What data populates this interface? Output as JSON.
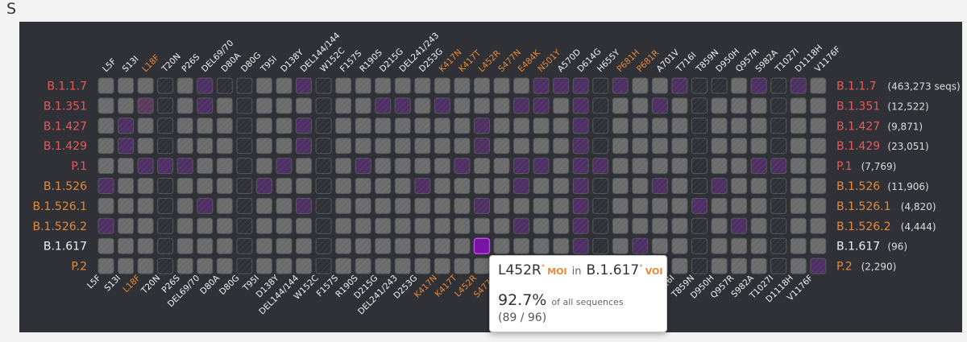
{
  "section": {
    "title": "S"
  },
  "colors": {
    "voc": "#e8595c",
    "voi": "#e5893a",
    "label_default": "#f2f2f2",
    "cell_present": "#6b6b6b",
    "cell_absent": "#2e3035",
    "cell_partial": "#4d2f63",
    "cell_full": "#7a12a3",
    "count_text": "#dddddd"
  },
  "chart_data": {
    "type": "heatmap",
    "mutations": [
      "L5F",
      "S13I",
      "L18F",
      "T20N",
      "P26S",
      "DEL69/70",
      "D80A",
      "D80G",
      "T95I",
      "D138Y",
      "DEL144/144",
      "W152C",
      "F157S",
      "R190S",
      "D215G",
      "DEL241/243",
      "D253G",
      "K417N",
      "K417T",
      "L452R",
      "S477N",
      "E484K",
      "N501Y",
      "A570D",
      "D614G",
      "H655Y",
      "P681H",
      "P681R",
      "A701V",
      "T716I",
      "T859N",
      "D950H",
      "Q957R",
      "S982A",
      "T1027I",
      "D1118H",
      "V1176F"
    ],
    "mutation_highlight": [
      0,
      0,
      1,
      0,
      0,
      0,
      0,
      0,
      0,
      0,
      0,
      0,
      0,
      0,
      0,
      0,
      0,
      1,
      1,
      1,
      1,
      1,
      1,
      0,
      0,
      0,
      1,
      1,
      0,
      0,
      0,
      0,
      0,
      0,
      0,
      0,
      0
    ],
    "lineages": [
      {
        "name": "B.1.1.7",
        "count": "(463,273 seqs)",
        "type": "voc"
      },
      {
        "name": "B.1.351",
        "count": "(12,522)",
        "type": "voc"
      },
      {
        "name": "B.1.427",
        "count": "(9,871)",
        "type": "voc"
      },
      {
        "name": "B.1.429",
        "count": "(23,051)",
        "type": "voc"
      },
      {
        "name": "P.1",
        "count": "(7,769)",
        "type": "voc"
      },
      {
        "name": "B.1.526",
        "count": "(11,906)",
        "type": "voi"
      },
      {
        "name": "B.1.526.1",
        "count": "(4,820)",
        "type": "voi"
      },
      {
        "name": "B.1.526.2",
        "count": "(4,444)",
        "type": "voi"
      },
      {
        "name": "B.1.617",
        "count": "(96)",
        "type": "default"
      },
      {
        "name": "P.2",
        "count": "(2,290)",
        "type": "voi"
      }
    ],
    "matrix": [
      [
        1,
        1,
        1,
        0,
        1,
        2,
        0,
        0,
        1,
        1,
        2,
        0,
        1,
        1,
        1,
        1,
        1,
        1,
        1,
        1,
        1,
        1,
        2,
        2,
        2,
        0,
        2,
        1,
        1,
        2,
        0,
        0,
        1,
        2,
        0,
        2,
        1
      ],
      [
        1,
        1,
        3,
        0,
        1,
        2,
        1,
        0,
        1,
        1,
        1,
        0,
        1,
        1,
        2,
        2,
        1,
        2,
        1,
        1,
        1,
        2,
        2,
        1,
        2,
        0,
        1,
        1,
        2,
        1,
        0,
        1,
        1,
        1,
        0,
        1,
        1
      ],
      [
        1,
        2,
        1,
        0,
        1,
        1,
        1,
        0,
        1,
        1,
        2,
        0,
        1,
        1,
        1,
        1,
        1,
        1,
        1,
        2,
        1,
        1,
        1,
        1,
        2,
        0,
        1,
        1,
        1,
        1,
        0,
        1,
        1,
        1,
        0,
        1,
        1
      ],
      [
        1,
        2,
        1,
        0,
        1,
        1,
        1,
        0,
        1,
        1,
        2,
        0,
        1,
        1,
        1,
        1,
        1,
        1,
        1,
        2,
        1,
        1,
        1,
        1,
        2,
        0,
        1,
        1,
        1,
        1,
        0,
        1,
        1,
        1,
        0,
        1,
        1
      ],
      [
        1,
        1,
        2,
        2,
        2,
        1,
        1,
        0,
        1,
        2,
        1,
        0,
        1,
        2,
        1,
        1,
        1,
        1,
        2,
        1,
        1,
        2,
        2,
        1,
        2,
        2,
        1,
        1,
        1,
        1,
        0,
        1,
        1,
        2,
        2,
        1,
        1
      ],
      [
        2,
        1,
        1,
        0,
        1,
        1,
        1,
        0,
        2,
        1,
        1,
        0,
        1,
        1,
        1,
        1,
        2,
        1,
        1,
        1,
        1,
        2,
        1,
        1,
        2,
        0,
        1,
        1,
        2,
        1,
        0,
        2,
        1,
        1,
        0,
        1,
        1
      ],
      [
        1,
        1,
        1,
        0,
        1,
        2,
        1,
        0,
        1,
        1,
        2,
        0,
        1,
        1,
        1,
        1,
        1,
        1,
        1,
        2,
        1,
        1,
        1,
        1,
        2,
        0,
        1,
        1,
        1,
        1,
        2,
        1,
        1,
        1,
        0,
        1,
        1
      ],
      [
        2,
        1,
        1,
        0,
        1,
        1,
        1,
        0,
        1,
        1,
        1,
        0,
        1,
        1,
        1,
        1,
        1,
        1,
        1,
        1,
        1,
        2,
        1,
        1,
        2,
        0,
        1,
        1,
        1,
        1,
        0,
        1,
        2,
        1,
        0,
        1,
        1
      ],
      [
        1,
        1,
        1,
        0,
        1,
        1,
        1,
        0,
        1,
        1,
        1,
        0,
        1,
        1,
        1,
        1,
        1,
        1,
        1,
        4,
        1,
        1,
        1,
        1,
        2,
        0,
        1,
        2,
        1,
        1,
        0,
        1,
        1,
        1,
        0,
        1,
        1
      ],
      [
        1,
        1,
        1,
        0,
        1,
        1,
        1,
        0,
        1,
        1,
        1,
        0,
        1,
        1,
        1,
        1,
        1,
        1,
        1,
        1,
        1,
        2,
        1,
        1,
        2,
        0,
        1,
        1,
        1,
        1,
        0,
        1,
        1,
        1,
        0,
        1,
        2
      ]
    ]
  },
  "tooltip": {
    "mutation": "L452R",
    "mutation_sup": "*",
    "mutation_badge": "MOI",
    "in_text": "in",
    "lineage": "B.1.617",
    "lineage_sup": "*",
    "lineage_badge": "VOI",
    "percent": "92.7%",
    "percent_caption": "of all sequences",
    "fraction": "(89 / 96)"
  }
}
